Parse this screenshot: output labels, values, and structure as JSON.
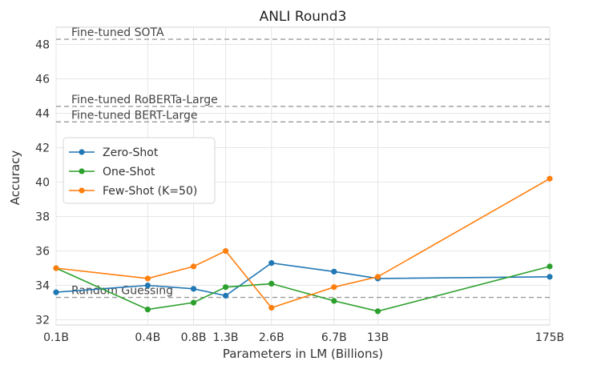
{
  "chart_data": {
    "type": "line",
    "title": "ANLI Round3",
    "xlabel": "Parameters in LM (Billions)",
    "ylabel": "Accuracy",
    "categories": [
      "0.1B",
      "0.4B",
      "0.8B",
      "1.3B",
      "2.6B",
      "6.7B",
      "13B",
      "175B"
    ],
    "x": [
      0.1,
      0.4,
      0.8,
      1.3,
      2.6,
      6.7,
      13,
      175
    ],
    "x_scale": "log",
    "ylim": [
      31.7,
      49.0
    ],
    "yticks": [
      32,
      34,
      36,
      38,
      40,
      42,
      44,
      46,
      48
    ],
    "grid": true,
    "legend_position": "center-left",
    "series": [
      {
        "name": "Zero-Shot",
        "color": "#1f77b4",
        "values": [
          33.6,
          34.0,
          33.8,
          33.4,
          35.3,
          34.8,
          34.4,
          34.5
        ]
      },
      {
        "name": "One-Shot",
        "color": "#2ca02c",
        "values": [
          35.0,
          32.6,
          33.0,
          33.9,
          34.1,
          33.1,
          32.5,
          35.1
        ]
      },
      {
        "name": "Few-Shot (K=50)",
        "color": "#ff7f0e",
        "values": [
          35.0,
          34.4,
          35.1,
          36.0,
          32.7,
          33.9,
          34.5,
          40.2
        ]
      }
    ],
    "reference_lines": [
      {
        "label": "Fine-tuned SOTA",
        "value": 48.3
      },
      {
        "label": "Fine-tuned RoBERTa-Large",
        "value": 44.4
      },
      {
        "label": "Fine-tuned BERT-Large",
        "value": 43.5
      },
      {
        "label": "Random Guessing",
        "value": 33.3
      }
    ]
  }
}
